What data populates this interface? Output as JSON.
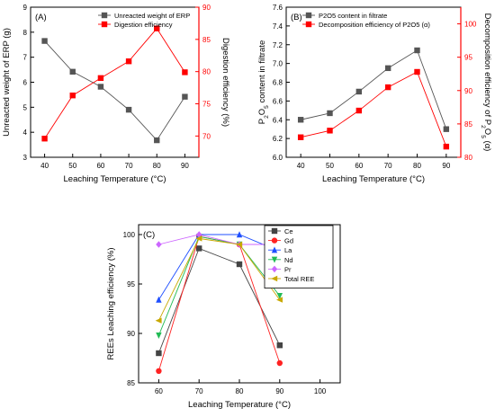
{
  "chart_data": [
    {
      "panel_label": "(A)",
      "type": "line",
      "x": [
        40,
        50,
        60,
        70,
        80,
        90
      ],
      "xlabel": "Leaching Temperature (°C)",
      "xlim": [
        35,
        95
      ],
      "xticks": [
        40,
        50,
        60,
        70,
        80,
        90
      ],
      "grid": false,
      "legend_position": "top-right",
      "series": [
        {
          "name": "Unreacted weight of ERP",
          "axis": "left",
          "color": "#555555",
          "marker": "square",
          "values": [
            7.65,
            6.42,
            5.82,
            4.9,
            3.68,
            5.42
          ]
        },
        {
          "name": "Digestion efficiency",
          "axis": "right",
          "color": "#ff0000",
          "marker": "square",
          "values": [
            69.6,
            76.3,
            79.0,
            81.6,
            86.7,
            79.9
          ]
        }
      ],
      "y_left": {
        "label": "Unreacted weight of ERP (g)",
        "lim": [
          3,
          9
        ],
        "ticks": [
          3,
          4,
          5,
          6,
          7,
          8,
          9
        ]
      },
      "y_right": {
        "label": "Digestion efficiency (%)",
        "lim": [
          66.7,
          90
        ],
        "ticks": [
          70,
          75,
          80,
          85,
          90
        ]
      }
    },
    {
      "panel_label": "(B)",
      "type": "line",
      "x": [
        40,
        50,
        60,
        70,
        80,
        90
      ],
      "xlabel": "Leaching Temperature (°C)",
      "xlim": [
        35,
        95
      ],
      "xticks": [
        40,
        50,
        60,
        70,
        80,
        90
      ],
      "grid": false,
      "legend_position": "top-left",
      "series": [
        {
          "name": "P2O5 content in filtrate",
          "axis": "left",
          "color": "#555555",
          "marker": "square",
          "values": [
            6.4,
            6.47,
            6.7,
            6.95,
            7.14,
            6.3
          ]
        },
        {
          "name": "Decomposition efficiency of P2O5 (α)",
          "axis": "right",
          "color": "#ff0000",
          "marker": "square",
          "values": [
            83.0,
            84.0,
            87.0,
            90.5,
            92.8,
            81.6
          ]
        }
      ],
      "y_left": {
        "label": "P2O5 content in filtrate",
        "lim": [
          6.0,
          7.6
        ],
        "ticks": [
          6.0,
          6.2,
          6.4,
          6.6,
          6.8,
          7.0,
          7.2,
          7.4,
          7.6
        ]
      },
      "y_right": {
        "label": "Decomposition efficiency of P2O5 (α)",
        "lim": [
          80,
          102.5
        ],
        "ticks": [
          80,
          85,
          90,
          95,
          100
        ]
      }
    },
    {
      "panel_label": "(C)",
      "type": "line",
      "x": [
        60,
        70,
        80,
        90
      ],
      "xlabel": "Leaching Temperature (°C)",
      "ylabel": "REEs Leaching efficiency (%)",
      "xlim": [
        55,
        105
      ],
      "xticks": [
        60,
        70,
        80,
        90,
        100
      ],
      "ylim": [
        85,
        101
      ],
      "yticks": [
        85,
        90,
        95,
        100
      ],
      "grid": false,
      "legend_position": "top-right",
      "series": [
        {
          "name": "Ce",
          "color": "#444444",
          "marker": "square",
          "values": [
            88.0,
            98.6,
            97.0,
            88.8
          ]
        },
        {
          "name": "Gd",
          "color": "#ff2222",
          "marker": "circle",
          "values": [
            86.2,
            99.8,
            99.0,
            87.0
          ]
        },
        {
          "name": "La",
          "color": "#1f4fff",
          "marker": "triangle-up",
          "values": [
            93.4,
            100.0,
            100.0,
            98.3
          ]
        },
        {
          "name": "Nd",
          "color": "#22bb55",
          "marker": "triangle-down",
          "values": [
            89.8,
            99.8,
            99.0,
            93.8
          ]
        },
        {
          "name": "Pr",
          "color": "#cc66ff",
          "marker": "diamond",
          "values": [
            99.0,
            100.0,
            99.0,
            99.0
          ]
        },
        {
          "name": "Total REE",
          "color": "#c8a800",
          "marker": "triangle-left",
          "values": [
            91.3,
            99.6,
            99.0,
            93.4
          ]
        }
      ]
    }
  ]
}
